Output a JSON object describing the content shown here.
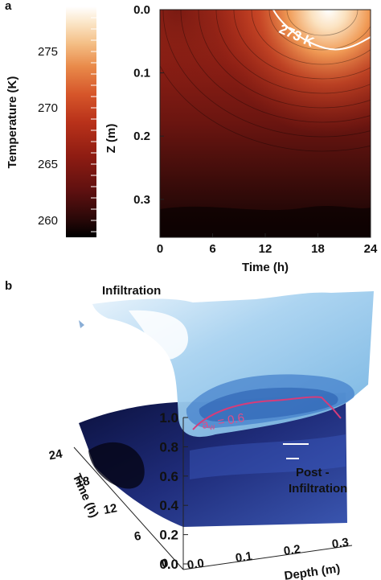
{
  "chart_data": [
    {
      "panel": "a",
      "type": "heatmap",
      "colorbar": {
        "label": "Temperature (K)",
        "ticks": [
          260,
          265,
          270,
          275
        ],
        "range": [
          258.5,
          279
        ],
        "colormap": [
          "#000000",
          "#2a0808",
          "#5e1010",
          "#8e1c12",
          "#b9321a",
          "#d6562a",
          "#e98a4a",
          "#f4bf86",
          "#fbe6c8",
          "#ffffff"
        ]
      },
      "xlabel": "Time (h)",
      "ylabel": "Z (m)",
      "xticks": [
        0,
        6,
        12,
        18,
        24
      ],
      "yticks": [
        "0.0",
        "0.1",
        "0.2",
        "0.3"
      ],
      "xlim": [
        0,
        24
      ],
      "ylim": [
        0,
        0.36
      ],
      "y_inverted": true,
      "contour_label": "273 K",
      "contour_level": 273,
      "warm_peak": {
        "time_h": 18.5,
        "z_m": 0.0,
        "temperature_k": 279
      }
    },
    {
      "panel": "b",
      "type": "surface3d",
      "xlabel": "Depth (m)",
      "ylabel": "Time (h)",
      "xticks": [
        "0.0",
        "0.1",
        "0.2",
        "0.3"
      ],
      "yticks": [
        "0",
        "6",
        "12",
        "18",
        "24"
      ],
      "zticks": [
        "0.0",
        "0.2",
        "0.4",
        "0.6",
        "0.8",
        "1.0"
      ],
      "surfaces": [
        "Infiltration",
        "Post - Infiltration"
      ],
      "contour_label": "a_w = 0.6"
    }
  ],
  "labels": {
    "panel_a": "a",
    "panel_b": "b",
    "infiltration": "Infiltration",
    "post_line1": "Post -",
    "post_line2": "Infiltration",
    "aw_symbol": "a",
    "aw_sub": "w",
    "aw_rest": " = 0.6"
  }
}
